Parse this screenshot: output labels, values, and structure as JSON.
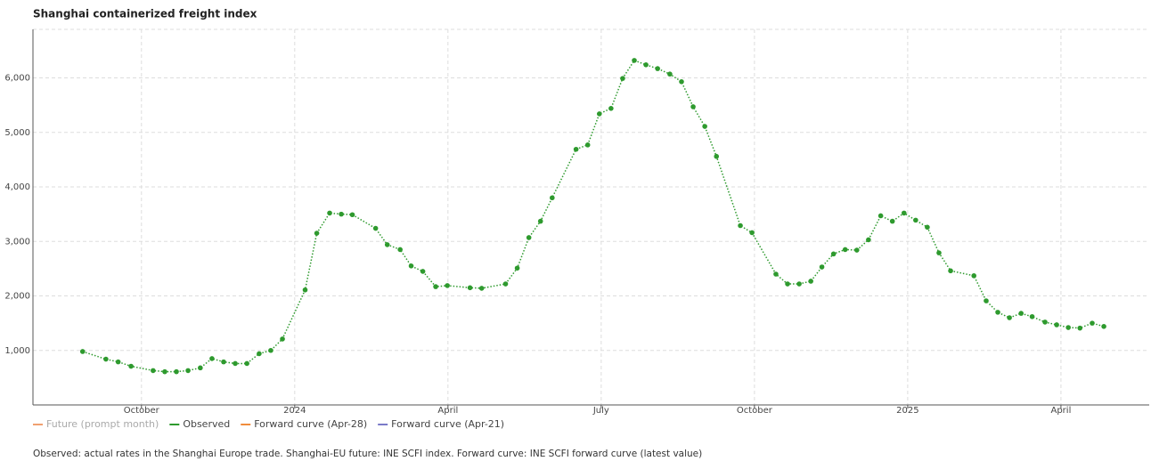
{
  "chart_data": {
    "type": "line",
    "title": "Shanghai containerized freight index",
    "note": "Observed: actual rates in the Shanghai Europe trade. Shanghai-EU future: INE SCFI index. Forward curve: INE SCFI forward curve (latest value)",
    "x": [
      2023.654,
      2023.692,
      2023.712,
      2023.733,
      2023.769,
      2023.788,
      2023.807,
      2023.826,
      2023.846,
      2023.865,
      2023.884,
      2023.903,
      2023.922,
      2023.942,
      2023.961,
      2023.98,
      2024.017,
      2024.036,
      2024.057,
      2024.076,
      2024.094,
      2024.132,
      2024.151,
      2024.172,
      2024.19,
      2024.209,
      2024.23,
      2024.249,
      2024.286,
      2024.305,
      2024.344,
      2024.363,
      2024.382,
      2024.401,
      2024.42,
      2024.459,
      2024.478,
      2024.497,
      2024.516,
      2024.535,
      2024.554,
      2024.573,
      2024.592,
      2024.612,
      2024.631,
      2024.65,
      2024.669,
      2024.688,
      2024.727,
      2024.746,
      2024.785,
      2024.804,
      2024.823,
      2024.842,
      2024.86,
      2024.879,
      2024.898,
      2024.917,
      2024.936,
      2024.956,
      2024.975,
      2024.994,
      2025.013,
      2025.032,
      2025.051,
      2025.07,
      2025.108,
      2025.128,
      2025.147,
      2025.166,
      2025.185,
      2025.203,
      2025.224,
      2025.243,
      2025.262,
      2025.281,
      2025.301,
      2025.32
    ],
    "series": [
      {
        "name": "Future (prompt month)",
        "color": "#f0a070",
        "hidden": true,
        "values": null
      },
      {
        "name": "Observed",
        "color": "#2e9a2e",
        "values": [
          980,
          840,
          790,
          710,
          630,
          610,
          610,
          630,
          680,
          850,
          790,
          760,
          760,
          940,
          1000,
          1210,
          2110,
          3150,
          3520,
          3500,
          3490,
          3240,
          2940,
          2850,
          2550,
          2450,
          2170,
          2190,
          2150,
          2140,
          2220,
          2510,
          3070,
          3370,
          3800,
          4690,
          4770,
          5340,
          5440,
          5990,
          6320,
          6240,
          6170,
          6070,
          5930,
          5470,
          5110,
          4560,
          3290,
          3160,
          2400,
          2220,
          2220,
          2270,
          2530,
          2770,
          2850,
          2840,
          3030,
          3470,
          3370,
          3520,
          3390,
          3260,
          2790,
          2460,
          2370,
          1910,
          1700,
          1600,
          1680,
          1620,
          1520,
          1470,
          1420,
          1410,
          1500,
          1440
        ]
      },
      {
        "name": "Forward curve (Apr-28)",
        "color": "#f08c3c",
        "values": null
      },
      {
        "name": "Forward curve (Apr-21)",
        "color": "#7a7ac8",
        "values": null
      }
    ],
    "xlim": [
      2023.573,
      2025.394
    ],
    "xticks": [
      {
        "value": 2023.75,
        "label": "October"
      },
      2024,
      {
        "value": 2024.25,
        "label": "April"
      },
      {
        "value": 2024.5,
        "label": "July"
      },
      {
        "value": 2024.75,
        "label": "October"
      },
      2025,
      {
        "value": 2025.25,
        "label": "April"
      }
    ],
    "ylim": [
      0,
      6890
    ],
    "yticks": [
      {
        "value": 1000,
        "label": "1,000"
      },
      {
        "value": 2000,
        "label": "2,000"
      },
      {
        "value": 3000,
        "label": "3,000"
      },
      {
        "value": 4000,
        "label": "4,000"
      },
      {
        "value": 5000,
        "label": "5,000"
      },
      {
        "value": 6000,
        "label": "6,000"
      }
    ],
    "grid": true
  }
}
